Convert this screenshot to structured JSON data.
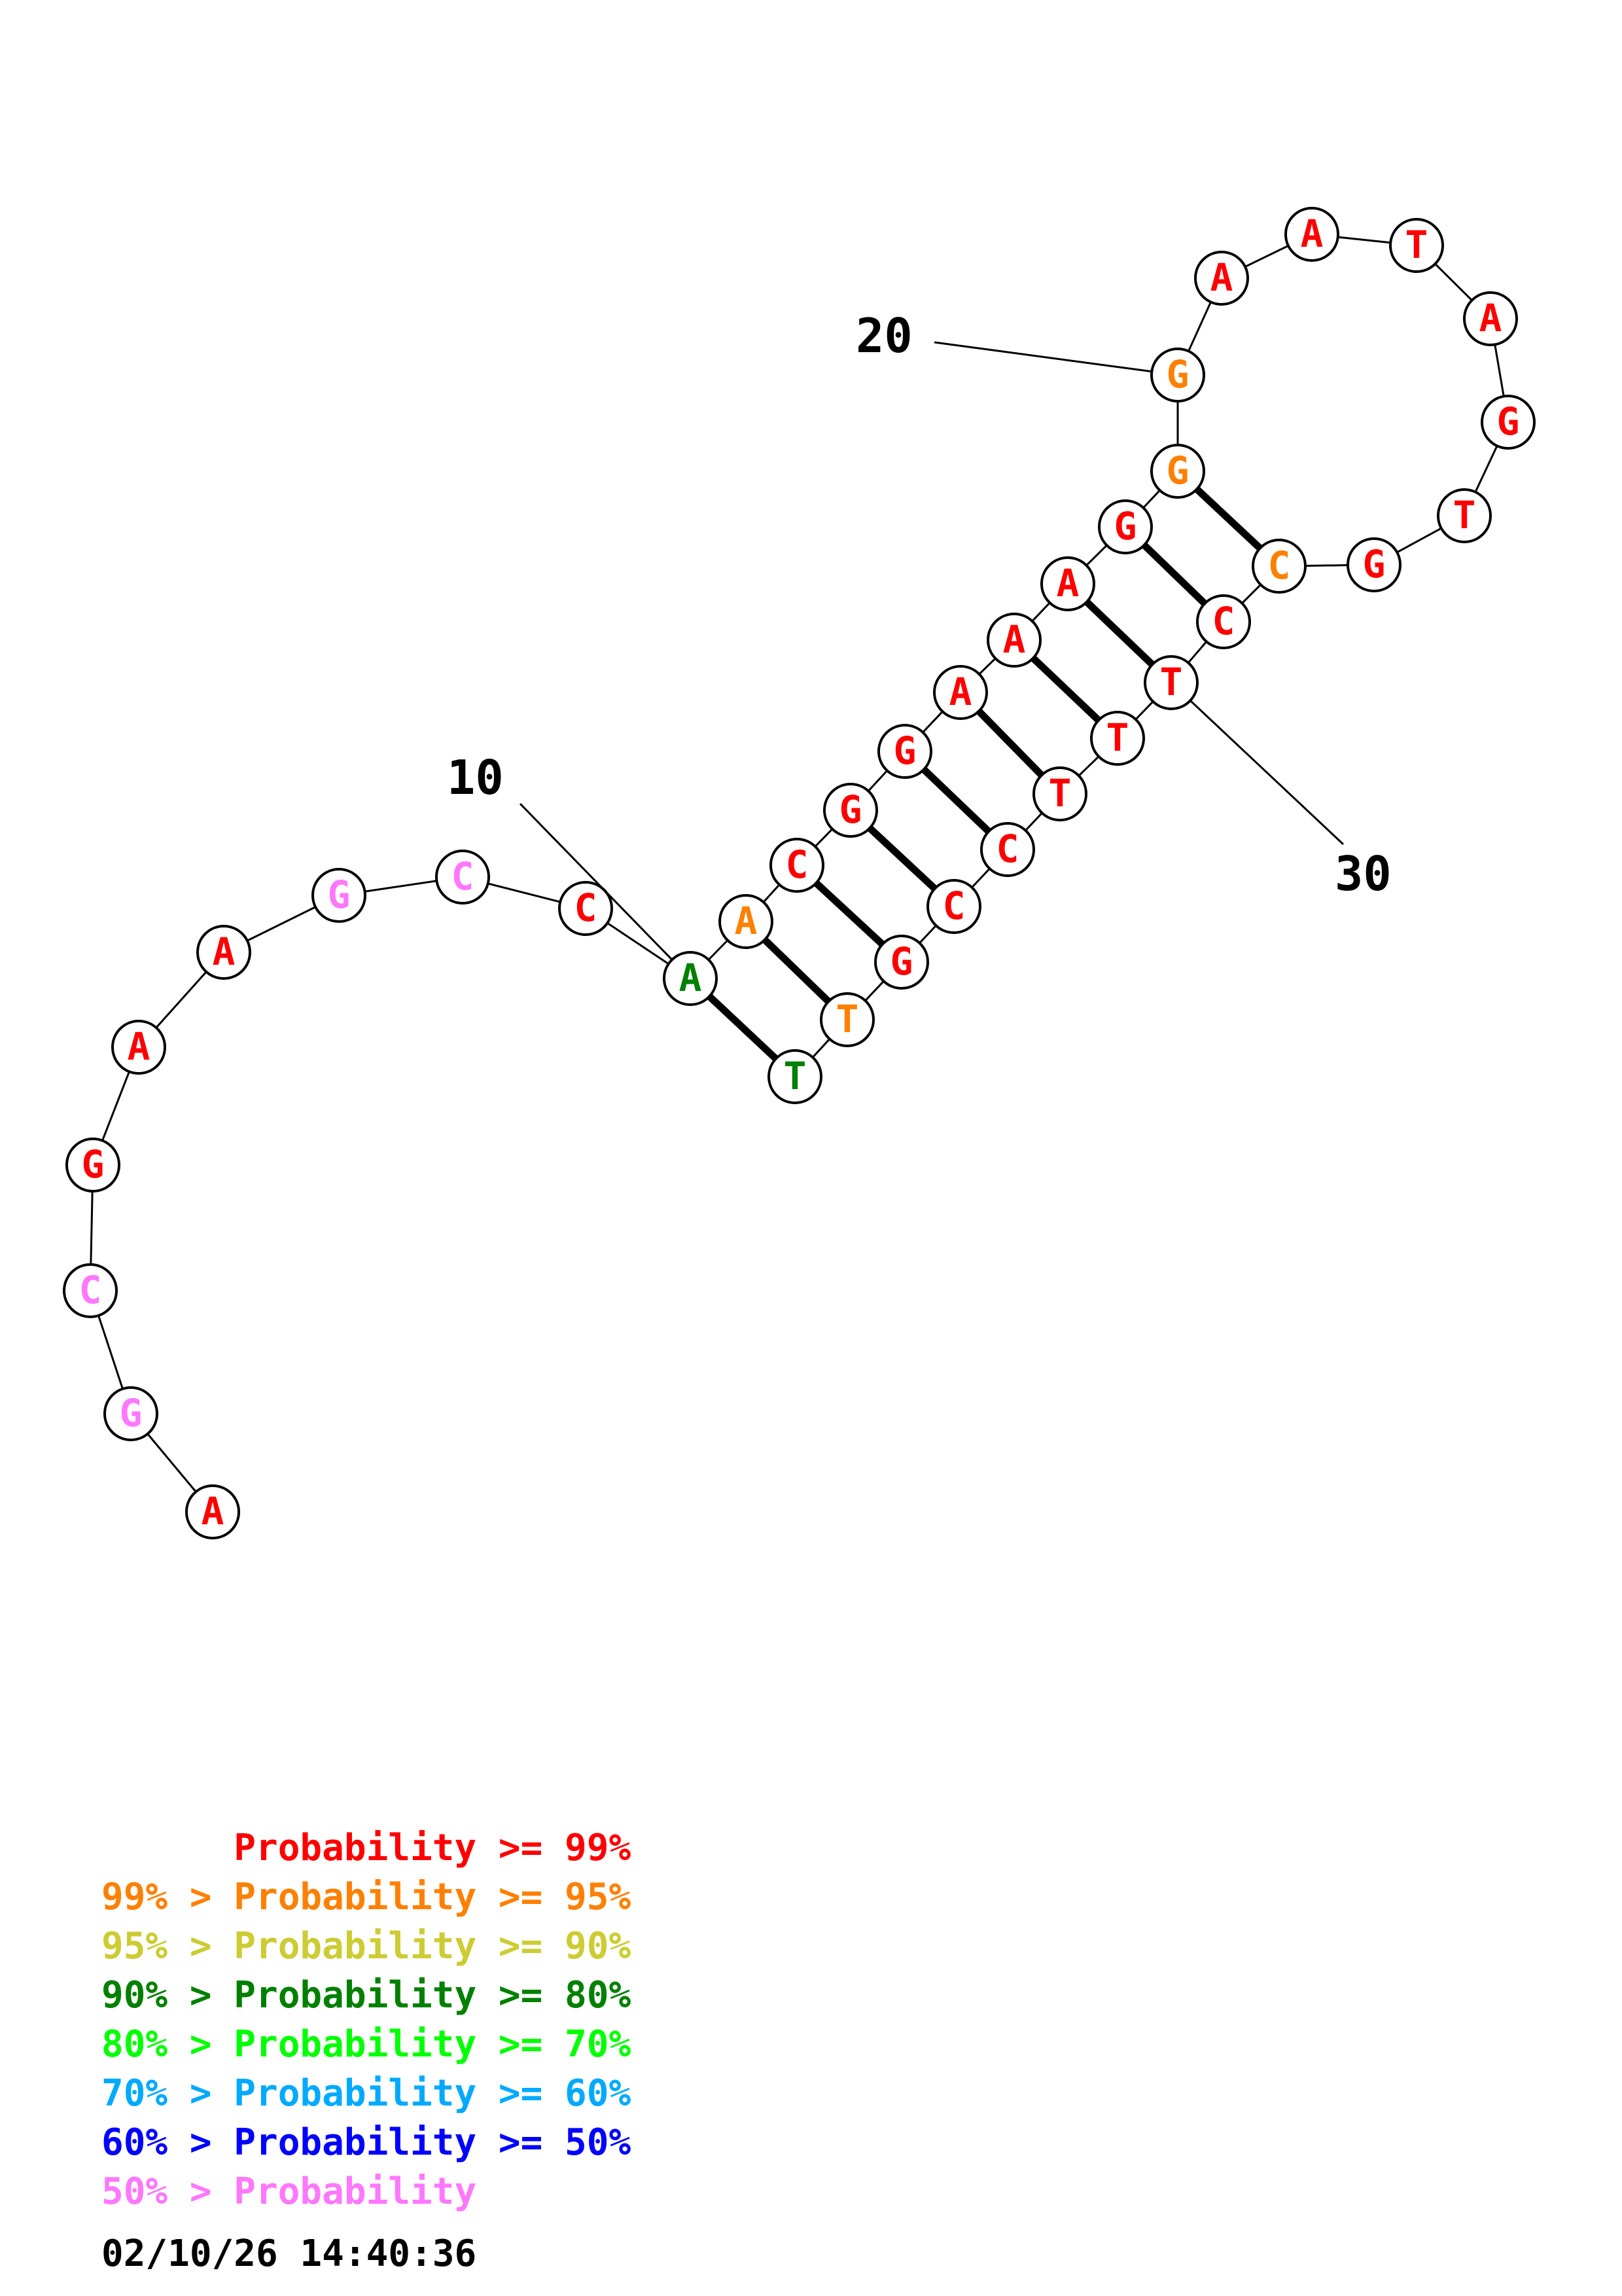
{
  "colors": {
    "p99": "#ff0000",
    "p95": "#ff8000",
    "p90": "#cccc33",
    "p80": "#008000",
    "p70": "#00ff00",
    "p60": "#00aaff",
    "p50": "#0000ff",
    "plow": "#ff77ff"
  },
  "sequence": [
    {
      "n": 1,
      "base": "A",
      "prob": "p99"
    },
    {
      "n": 2,
      "base": "G",
      "prob": "plow"
    },
    {
      "n": 3,
      "base": "C",
      "prob": "plow"
    },
    {
      "n": 4,
      "base": "G",
      "prob": "p99"
    },
    {
      "n": 5,
      "base": "A",
      "prob": "p99"
    },
    {
      "n": 6,
      "base": "A",
      "prob": "p99"
    },
    {
      "n": 7,
      "base": "G",
      "prob": "plow"
    },
    {
      "n": 8,
      "base": "C",
      "prob": "plow"
    },
    {
      "n": 9,
      "base": "C",
      "prob": "p99"
    },
    {
      "n": 10,
      "base": "A",
      "prob": "p80"
    },
    {
      "n": 11,
      "base": "A",
      "prob": "p95"
    },
    {
      "n": 12,
      "base": "C",
      "prob": "p99"
    },
    {
      "n": 13,
      "base": "G",
      "prob": "p99"
    },
    {
      "n": 14,
      "base": "G",
      "prob": "p99"
    },
    {
      "n": 15,
      "base": "A",
      "prob": "p99"
    },
    {
      "n": 16,
      "base": "A",
      "prob": "p99"
    },
    {
      "n": 17,
      "base": "A",
      "prob": "p99"
    },
    {
      "n": 18,
      "base": "G",
      "prob": "p99"
    },
    {
      "n": 19,
      "base": "G",
      "prob": "p95"
    },
    {
      "n": 20,
      "base": "G",
      "prob": "p95"
    },
    {
      "n": 21,
      "base": "A",
      "prob": "p99"
    },
    {
      "n": 22,
      "base": "A",
      "prob": "p99"
    },
    {
      "n": 23,
      "base": "T",
      "prob": "p99"
    },
    {
      "n": 24,
      "base": "A",
      "prob": "p99"
    },
    {
      "n": 25,
      "base": "G",
      "prob": "p99"
    },
    {
      "n": 26,
      "base": "T",
      "prob": "p99"
    },
    {
      "n": 27,
      "base": "G",
      "prob": "p99"
    },
    {
      "n": 28,
      "base": "C",
      "prob": "p95"
    },
    {
      "n": 29,
      "base": "C",
      "prob": "p99"
    },
    {
      "n": 30,
      "base": "T",
      "prob": "p99"
    },
    {
      "n": 31,
      "base": "T",
      "prob": "p99"
    },
    {
      "n": 32,
      "base": "T",
      "prob": "p99"
    },
    {
      "n": 33,
      "base": "C",
      "prob": "p99"
    },
    {
      "n": 34,
      "base": "C",
      "prob": "p99"
    },
    {
      "n": 35,
      "base": "G",
      "prob": "p99"
    },
    {
      "n": 36,
      "base": "T",
      "prob": "p95"
    },
    {
      "n": 37,
      "base": "T",
      "prob": "p80"
    }
  ],
  "pairs": [
    [
      10,
      37
    ],
    [
      11,
      36
    ],
    [
      12,
      35
    ],
    [
      13,
      34
    ],
    [
      14,
      33
    ],
    [
      15,
      32
    ],
    [
      16,
      31
    ],
    [
      17,
      30
    ],
    [
      18,
      29
    ],
    [
      19,
      28
    ]
  ],
  "position_labels": [
    {
      "n": 10,
      "text": "10"
    },
    {
      "n": 20,
      "text": "20"
    },
    {
      "n": 30,
      "text": "30"
    }
  ],
  "legend": [
    {
      "prob": "p99",
      "text": "      Probability >= 99%"
    },
    {
      "prob": "p95",
      "text": "99% > Probability >= 95%"
    },
    {
      "prob": "p90",
      "text": "95% > Probability >= 90%"
    },
    {
      "prob": "p80",
      "text": "90% > Probability >= 80%"
    },
    {
      "prob": "p70",
      "text": "80% > Probability >= 70%"
    },
    {
      "prob": "p60",
      "text": "70% > Probability >= 60%"
    },
    {
      "prob": "p50",
      "text": "60% > Probability >= 50%"
    },
    {
      "prob": "plow",
      "text": "50% > Probability"
    }
  ],
  "timestamp": "02/10/26 14:40:36"
}
